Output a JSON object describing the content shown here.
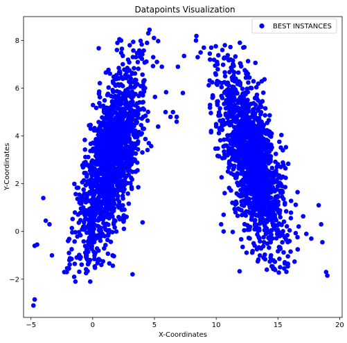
{
  "chart_data": {
    "type": "scatter",
    "title": "Datapoints Visualization",
    "xlabel": "X-Coordinates",
    "ylabel": "Y-Coordinates",
    "xlim": [
      -5.6,
      20.2
    ],
    "ylim": [
      -3.6,
      9.0
    ],
    "xticks": [
      -5,
      0,
      5,
      10,
      15,
      20
    ],
    "yticks": [
      -2,
      0,
      2,
      4,
      6,
      8
    ],
    "grid": false,
    "legend_position": "top-right",
    "marker_color": "#0000ff",
    "series": [
      {
        "name": "BEST INSTANCES",
        "clusters": [
          {
            "center": [
              1.5,
              3.0
            ],
            "spread_along": 2.6,
            "spread_across": 0.9,
            "slope_angle_deg": 62,
            "n": 1500
          },
          {
            "center": [
              12.9,
              3.0
            ],
            "spread_along": 2.6,
            "spread_across": 0.9,
            "slope_angle_deg": -62,
            "n": 1500
          }
        ],
        "points": [
          [
            -4.8,
            -3.1
          ],
          [
            -4.7,
            -2.85
          ],
          [
            -4.7,
            -0.6
          ],
          [
            -4.5,
            -0.55
          ],
          [
            -4.0,
            1.4
          ],
          [
            -3.8,
            0.45
          ],
          [
            -3.5,
            0.3
          ],
          [
            -3.3,
            -1.0
          ],
          [
            -2.3,
            -1.7
          ],
          [
            -2.1,
            -1.7
          ],
          [
            -1.4,
            -2.1
          ],
          [
            -1.5,
            -1.9
          ],
          [
            -0.2,
            -2.1
          ],
          [
            0.4,
            -1.2
          ],
          [
            0.7,
            -1.4
          ],
          [
            2.0,
            7.9
          ],
          [
            2.3,
            8.0
          ],
          [
            3.0,
            7.8
          ],
          [
            3.5,
            7.3
          ],
          [
            4.5,
            8.3
          ],
          [
            4.6,
            8.45
          ],
          [
            4.9,
            7.3
          ],
          [
            5.2,
            7.1
          ],
          [
            4.4,
            7.9
          ],
          [
            3.8,
            7.5
          ],
          [
            5.6,
            6.9
          ],
          [
            5.9,
            5.0
          ],
          [
            6.3,
            4.8
          ],
          [
            6.5,
            5.0
          ],
          [
            6.8,
            4.6
          ],
          [
            6.8,
            4.8
          ],
          [
            6.9,
            6.9
          ],
          [
            7.3,
            5.8
          ],
          [
            7.4,
            7.35
          ],
          [
            8.5,
            7.3
          ],
          [
            9.0,
            7.7
          ],
          [
            9.6,
            7.7
          ],
          [
            9.5,
            7.2
          ],
          [
            10.1,
            7.0
          ],
          [
            10.5,
            7.6
          ],
          [
            10.7,
            7.8
          ],
          [
            9.7,
            5.6
          ],
          [
            9.5,
            5.3
          ],
          [
            10.0,
            4.4
          ],
          [
            10.4,
            0.3
          ],
          [
            10.6,
            0.7
          ],
          [
            10.6,
            0.0
          ],
          [
            18.3,
            1.1
          ],
          [
            18.5,
            0.3
          ],
          [
            18.6,
            -0.45
          ],
          [
            18.9,
            -1.7
          ],
          [
            19.0,
            -1.85
          ],
          [
            17.3,
            -0.1
          ],
          [
            17.7,
            -0.3
          ],
          [
            16.6,
            -0.75
          ],
          [
            15.8,
            -1.35
          ],
          [
            14.1,
            -1.6
          ]
        ]
      }
    ]
  }
}
